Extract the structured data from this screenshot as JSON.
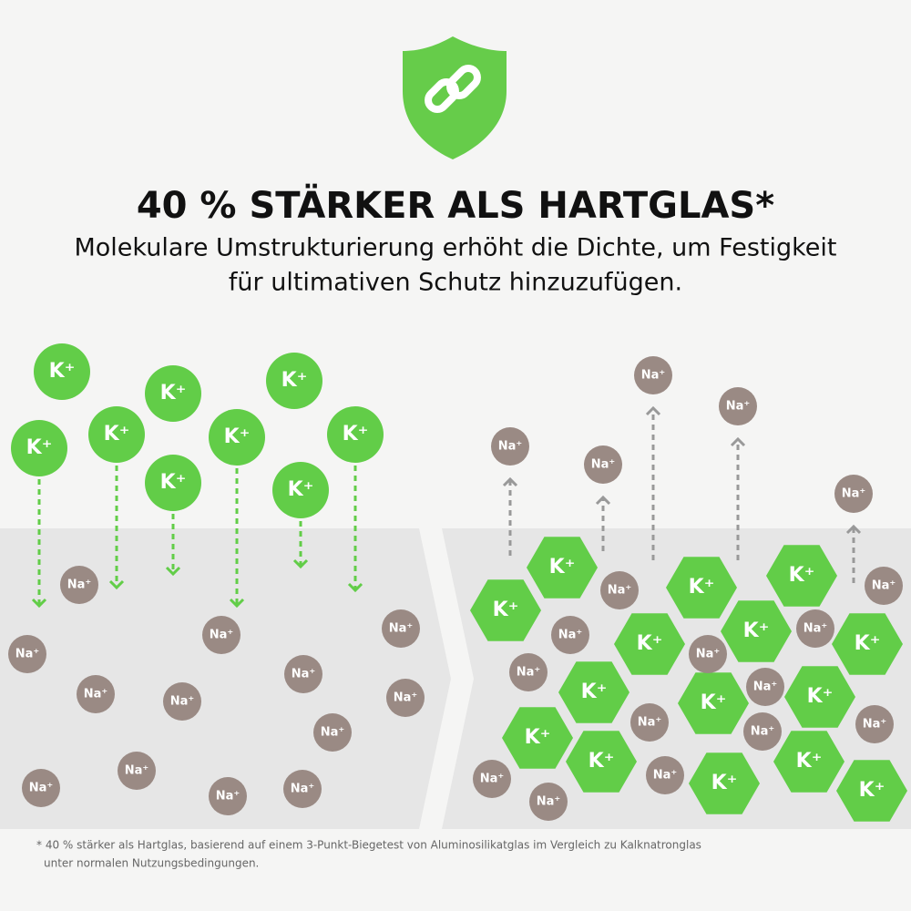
{
  "header": {
    "title": "40 % STÄRKER ALS HARTGLAS*",
    "subtitle": [
      "Molekulare Umstrukturierung erhöht die Dichte, um Festigkeit",
      "für ultimativen Schutz hinzuzufügen."
    ]
  },
  "ions": {
    "potassium": "K⁺",
    "sodium": "Na⁺"
  },
  "footnote": [
    "* 40 % stärker als Hartglas, basierend auf einem 3-Punkt-Biegetest von Aluminosilikatglas im Vergleich zu Kalknatronglas",
    "unter normalen Nutzungsbedingungen."
  ]
}
